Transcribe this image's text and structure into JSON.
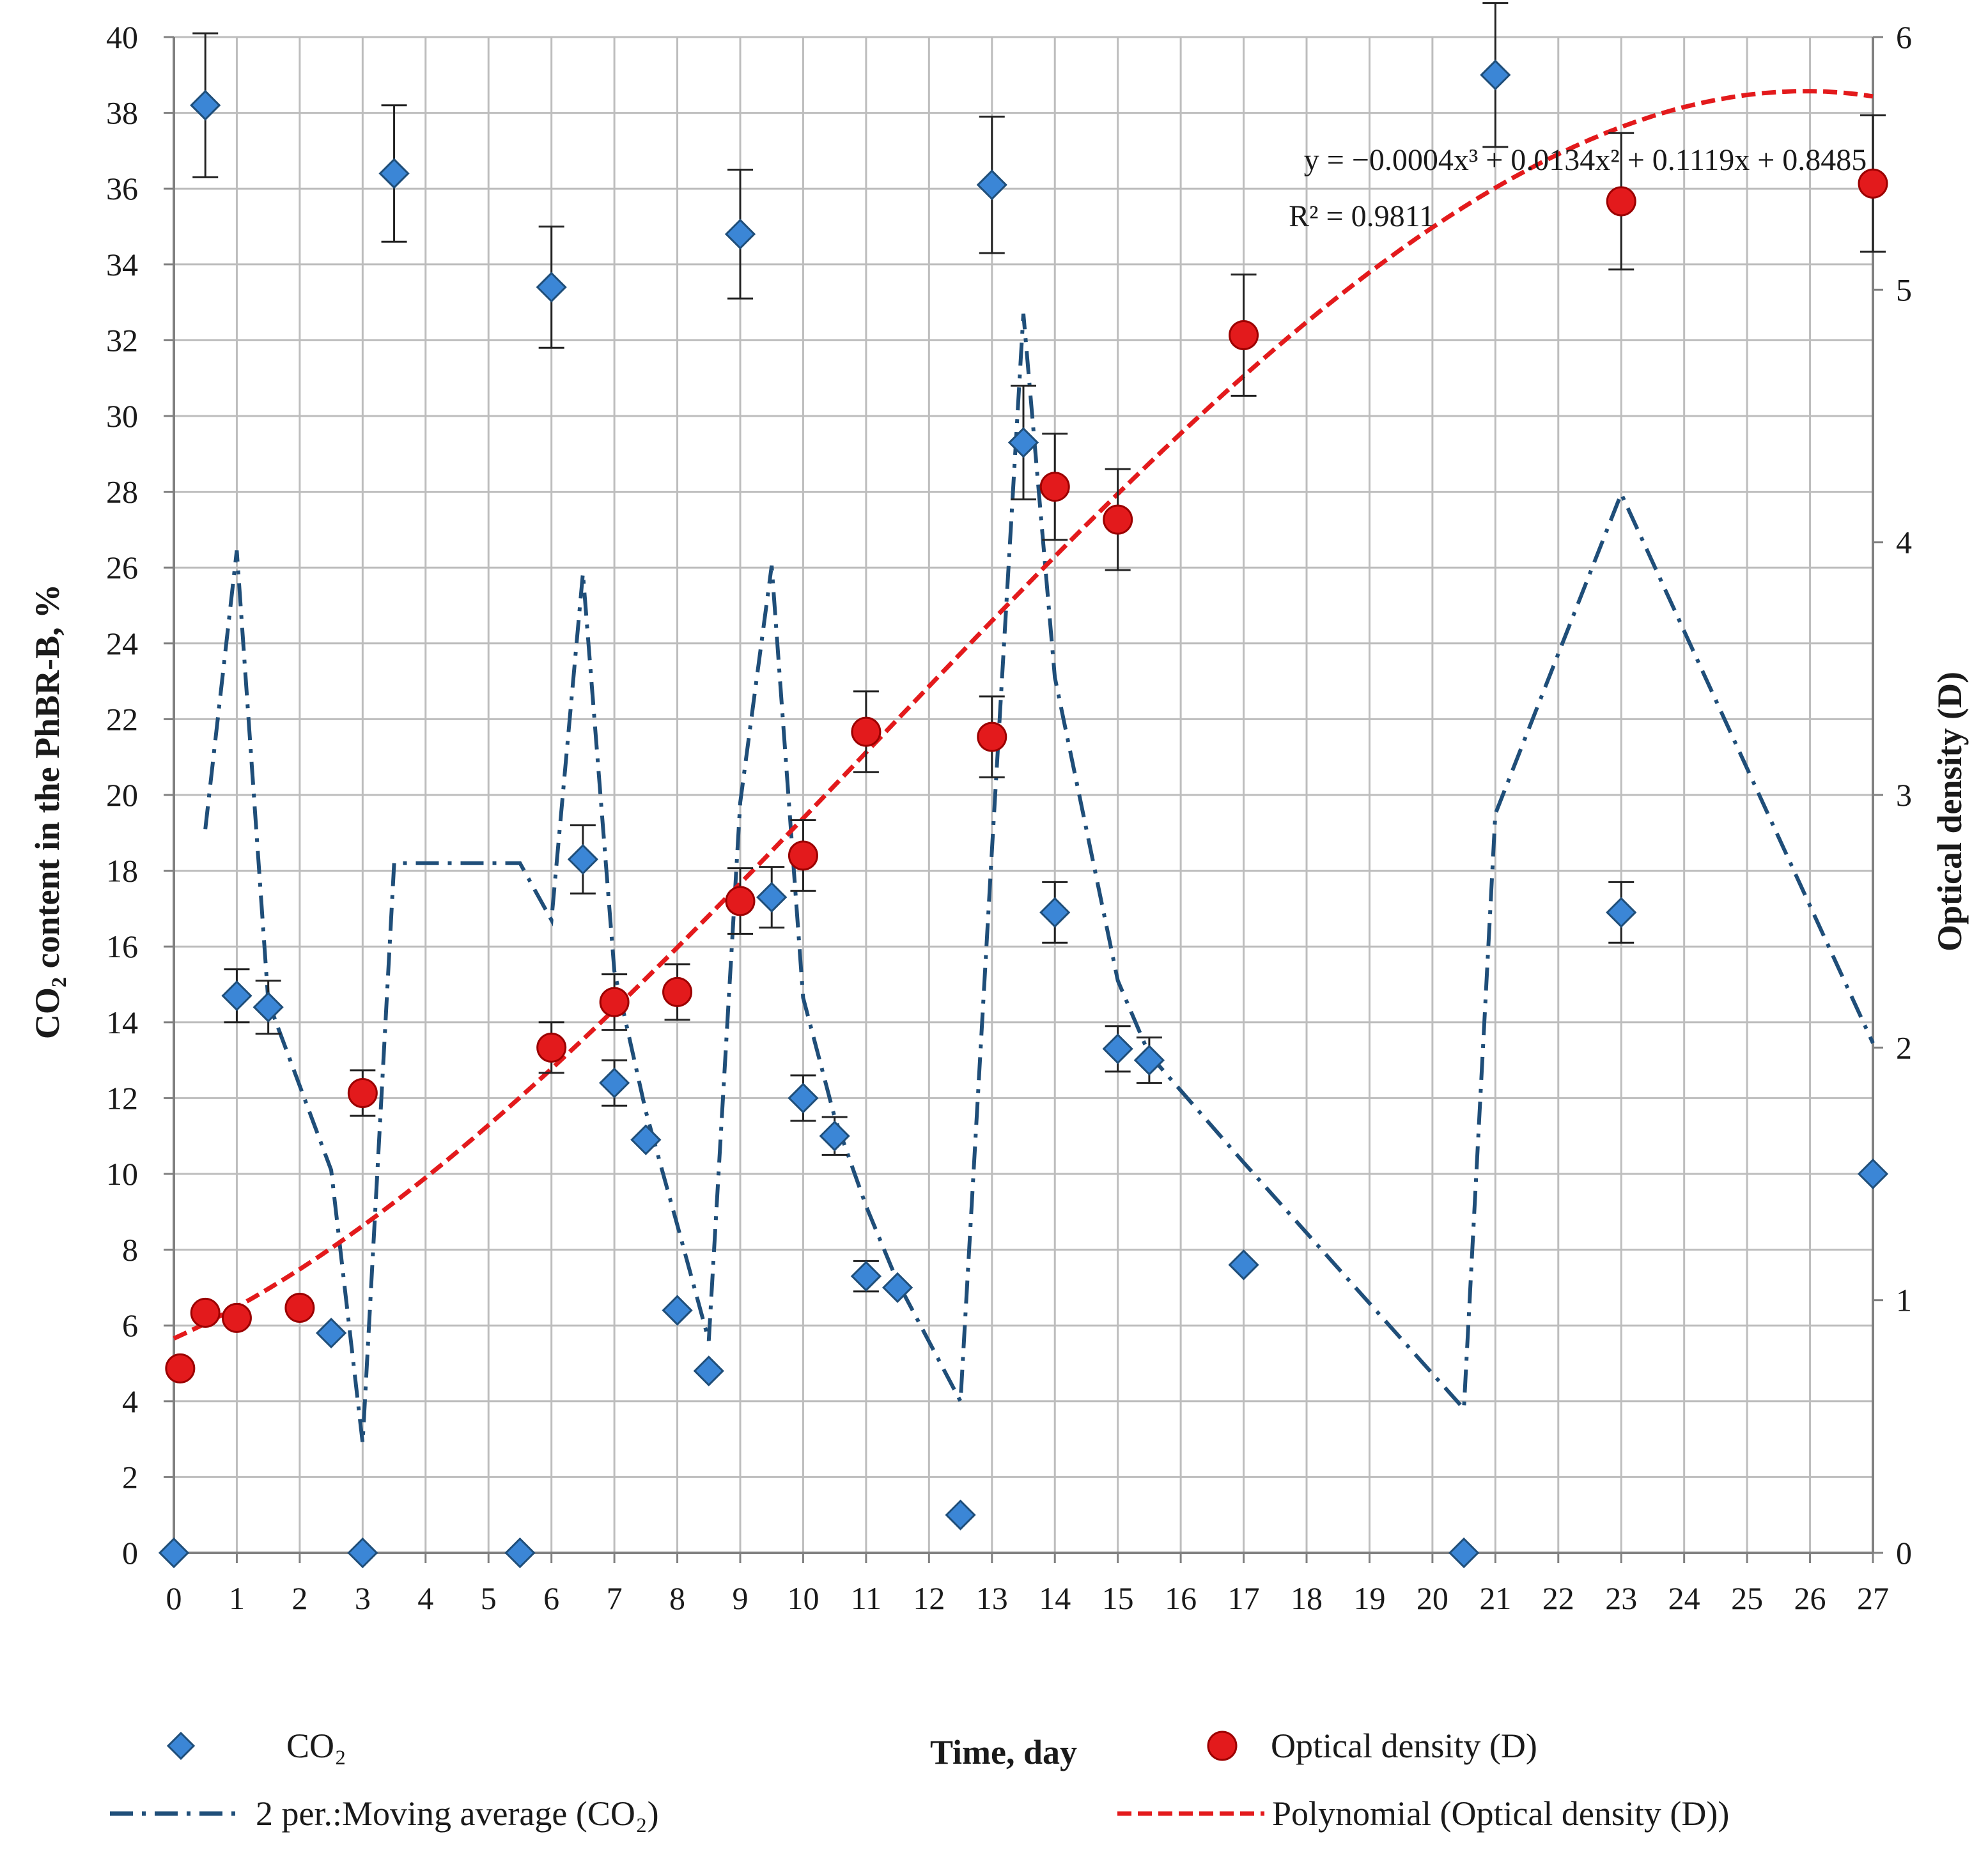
{
  "chart_data": {
    "type": "scatter",
    "title": "",
    "xlabel": "Time, day",
    "ylabel_left": "CO₂ content in the PhBR-B, %",
    "ylabel_right": "Optical density (D)",
    "xlim": [
      0,
      27
    ],
    "ylim_left": [
      0,
      40
    ],
    "ylim_right": [
      0,
      6
    ],
    "x_ticks": [
      0,
      1,
      2,
      3,
      4,
      5,
      6,
      7,
      8,
      9,
      10,
      11,
      12,
      13,
      14,
      15,
      16,
      17,
      18,
      19,
      20,
      21,
      22,
      23,
      24,
      25,
      26,
      27
    ],
    "y_left_ticks": [
      0,
      2,
      4,
      6,
      8,
      10,
      12,
      14,
      16,
      18,
      20,
      22,
      24,
      26,
      28,
      30,
      32,
      34,
      36,
      38,
      40
    ],
    "y_right_ticks": [
      0,
      1,
      2,
      3,
      4,
      5,
      6
    ],
    "grid": true,
    "series": [
      {
        "name": "CO₂",
        "axis": "left",
        "marker": "diamond",
        "color": "#3b86d6",
        "points": [
          {
            "x": 0,
            "y": 0,
            "err": null
          },
          {
            "x": 0.5,
            "y": 38.2,
            "err": 1.9
          },
          {
            "x": 1,
            "y": 14.7,
            "err": 0.7
          },
          {
            "x": 1.5,
            "y": 14.4,
            "err": 0.7
          },
          {
            "x": 2.5,
            "y": 5.8,
            "err": null
          },
          {
            "x": 3,
            "y": 0,
            "err": null
          },
          {
            "x": 3.5,
            "y": 36.4,
            "err": 1.8
          },
          {
            "x": 5.5,
            "y": 0,
            "err": null
          },
          {
            "x": 6,
            "y": 33.4,
            "err": 1.6
          },
          {
            "x": 6.5,
            "y": 18.3,
            "err": 0.9
          },
          {
            "x": 7,
            "y": 12.4,
            "err": 0.6
          },
          {
            "x": 7.5,
            "y": 10.9,
            "err": null
          },
          {
            "x": 8,
            "y": 6.4,
            "err": null
          },
          {
            "x": 8.5,
            "y": 4.8,
            "err": null
          },
          {
            "x": 9,
            "y": 34.8,
            "err": 1.7
          },
          {
            "x": 9.5,
            "y": 17.3,
            "err": 0.8
          },
          {
            "x": 10,
            "y": 12.0,
            "err": 0.6
          },
          {
            "x": 10.5,
            "y": 11.0,
            "err": 0.5
          },
          {
            "x": 11,
            "y": 7.3,
            "err": 0.4
          },
          {
            "x": 11.5,
            "y": 7.0,
            "err": null
          },
          {
            "x": 12.5,
            "y": 1.0,
            "err": null
          },
          {
            "x": 13,
            "y": 36.1,
            "err": 1.8
          },
          {
            "x": 13.5,
            "y": 29.3,
            "err": 1.5
          },
          {
            "x": 14,
            "y": 16.9,
            "err": 0.8
          },
          {
            "x": 15,
            "y": 13.3,
            "err": 0.6
          },
          {
            "x": 15.5,
            "y": 13.0,
            "err": 0.6
          },
          {
            "x": 17,
            "y": 7.6,
            "err": null
          },
          {
            "x": 20.5,
            "y": 0,
            "err": null
          },
          {
            "x": 21,
            "y": 39.0,
            "err": 1.9
          },
          {
            "x": 23,
            "y": 16.9,
            "err": 0.8
          },
          {
            "x": 27,
            "y": 10.0,
            "err": null
          }
        ]
      },
      {
        "name": "Optical density (D)",
        "axis": "right",
        "marker": "circle",
        "color": "#e31a1c",
        "points": [
          {
            "x": 0.1,
            "y": 0.73,
            "err": null
          },
          {
            "x": 0.5,
            "y": 0.95,
            "err": null
          },
          {
            "x": 1,
            "y": 0.93,
            "err": null
          },
          {
            "x": 2,
            "y": 0.97,
            "err": null
          },
          {
            "x": 3,
            "y": 1.82,
            "err": 0.09
          },
          {
            "x": 6,
            "y": 2.0,
            "err": 0.1
          },
          {
            "x": 7,
            "y": 2.18,
            "err": 0.11
          },
          {
            "x": 8,
            "y": 2.22,
            "err": 0.11
          },
          {
            "x": 9,
            "y": 2.58,
            "err": 0.13
          },
          {
            "x": 10,
            "y": 2.76,
            "err": 0.14
          },
          {
            "x": 11,
            "y": 3.25,
            "err": 0.16
          },
          {
            "x": 13,
            "y": 3.23,
            "err": 0.16
          },
          {
            "x": 14,
            "y": 4.22,
            "err": 0.21
          },
          {
            "x": 15,
            "y": 4.09,
            "err": 0.2
          },
          {
            "x": 17,
            "y": 4.82,
            "err": 0.24
          },
          {
            "x": 23,
            "y": 5.35,
            "err": 0.27
          },
          {
            "x": 27,
            "y": 5.42,
            "err": 0.27
          }
        ]
      },
      {
        "name": "2 per.:Moving average (CO₂)",
        "axis": "left",
        "type": "moving-average",
        "period": 2,
        "color": "#1f4e79"
      },
      {
        "name": "Polynomial (Optical density (D))",
        "axis": "right",
        "type": "polynomial-trendline",
        "coefficients": [
          -0.0004,
          0.0134,
          0.1119,
          0.8485
        ],
        "color": "#e31a1c"
      }
    ],
    "annotations": {
      "equation": "y = −0.0004x³ + 0.0134x² + 0.1119x + 0.8485",
      "r_squared": "R² = 0.9811"
    },
    "legend": {
      "placement": "bottom",
      "items": [
        {
          "label": "CO₂",
          "symbol": "diamond",
          "color": "#3b86d6"
        },
        {
          "label": "Optical density (D)",
          "symbol": "circle",
          "color": "#e31a1c"
        },
        {
          "label": "2 per.:Moving average (CO₂)",
          "symbol": "dash-dot",
          "color": "#1f4e79"
        },
        {
          "label": "Polynomial (Optical density (D))",
          "symbol": "dash",
          "color": "#e31a1c"
        }
      ]
    }
  }
}
